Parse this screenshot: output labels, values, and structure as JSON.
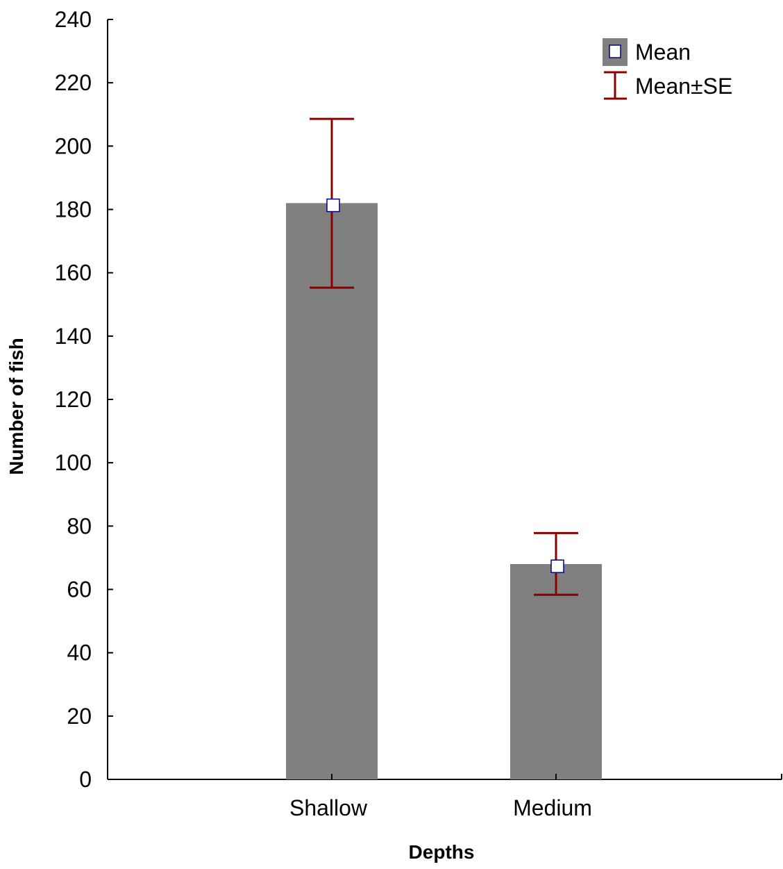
{
  "chart_data": {
    "type": "bar",
    "categories": [
      "Shallow",
      "Medium"
    ],
    "values": [
      182,
      68
    ],
    "mean_markers": [
      181.3,
      67.3
    ],
    "se_low": [
      155.3,
      58.3
    ],
    "se_high": [
      208.6,
      77.8
    ],
    "xlabel": "Depths",
    "ylabel": "Number of fish",
    "ylim": [
      0,
      240
    ],
    "yticks": [
      0,
      20,
      40,
      60,
      80,
      100,
      120,
      140,
      160,
      180,
      200,
      220,
      240
    ],
    "legend": {
      "position": "top-right",
      "entries": [
        "Mean",
        "Mean±SE"
      ]
    },
    "grid": false,
    "colors": {
      "bar": "#808080",
      "error": "#8b0000",
      "marker_edge": "#000080",
      "marker_fill": "#ffffff"
    }
  }
}
